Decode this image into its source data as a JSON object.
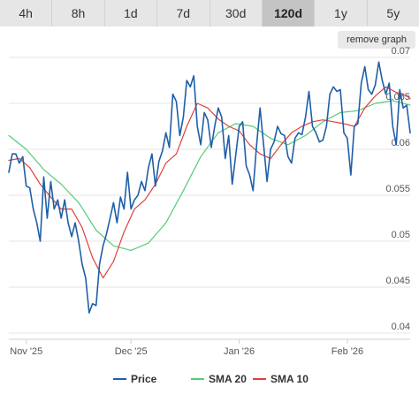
{
  "tabs": [
    {
      "label": "4h",
      "active": false
    },
    {
      "label": "8h",
      "active": false
    },
    {
      "label": "1d",
      "active": false
    },
    {
      "label": "7d",
      "active": false
    },
    {
      "label": "30d",
      "active": false
    },
    {
      "label": "120d",
      "active": true
    },
    {
      "label": "1y",
      "active": false
    },
    {
      "label": "5y",
      "active": false
    }
  ],
  "remove_button": "remove graph",
  "chart_data": {
    "type": "line",
    "x_labels": [
      "Nov '25",
      "Dec '25",
      "Jan '26",
      "Feb '26"
    ],
    "x_label_positions_days": [
      5,
      35,
      66,
      97
    ],
    "ylim": [
      0.04,
      0.07
    ],
    "yticks": [
      "0.04",
      "0.045",
      "0.05",
      "0.055",
      "0.06",
      "0.065",
      "0.07"
    ],
    "grid": "horizontal",
    "legend_position": "bottom",
    "series": [
      {
        "name": "Price",
        "color": "#1f5fa8",
        "x": [
          0,
          1,
          2,
          3,
          4,
          5,
          6,
          7,
          8,
          9,
          10,
          11,
          12,
          13,
          14,
          15,
          16,
          17,
          18,
          19,
          20,
          21,
          22,
          23,
          24,
          25,
          26,
          27,
          28,
          29,
          30,
          31,
          32,
          33,
          34,
          35,
          36,
          37,
          38,
          39,
          40,
          41,
          42,
          43,
          44,
          45,
          46,
          47,
          48,
          49,
          50,
          51,
          52,
          53,
          54,
          55,
          56,
          57,
          58,
          59,
          60,
          61,
          62,
          63,
          64,
          65,
          66,
          67,
          68,
          69,
          70,
          71,
          72,
          73,
          74,
          75,
          76,
          77,
          78,
          79,
          80,
          81,
          82,
          83,
          84,
          85,
          86,
          87,
          88,
          89,
          90,
          91,
          92,
          93,
          94,
          95,
          96,
          97,
          98,
          99,
          100,
          101,
          102,
          103,
          104,
          105,
          106,
          107,
          108,
          109,
          110,
          111,
          112,
          113,
          114,
          115
        ],
        "y": [
          0.0575,
          0.0595,
          0.0595,
          0.0585,
          0.0592,
          0.056,
          0.0558,
          0.0535,
          0.052,
          0.05,
          0.057,
          0.0525,
          0.0565,
          0.0535,
          0.0545,
          0.0525,
          0.0545,
          0.052,
          0.0505,
          0.052,
          0.05,
          0.0475,
          0.046,
          0.0422,
          0.0432,
          0.043,
          0.0475,
          0.0495,
          0.0508,
          0.0525,
          0.0542,
          0.052,
          0.0548,
          0.0535,
          0.0575,
          0.0535,
          0.0545,
          0.055,
          0.0565,
          0.0555,
          0.058,
          0.0595,
          0.056,
          0.0587,
          0.0598,
          0.0618,
          0.0602,
          0.066,
          0.0652,
          0.0615,
          0.0635,
          0.0675,
          0.0668,
          0.068,
          0.0625,
          0.0605,
          0.064,
          0.0632,
          0.0602,
          0.0625,
          0.0645,
          0.0635,
          0.059,
          0.0615,
          0.0562,
          0.0593,
          0.0625,
          0.063,
          0.0582,
          0.0572,
          0.0555,
          0.0605,
          0.0645,
          0.0605,
          0.0565,
          0.06,
          0.0608,
          0.0625,
          0.0617,
          0.0615,
          0.0592,
          0.0585,
          0.0612,
          0.0618,
          0.0616,
          0.0635,
          0.0663,
          0.0625,
          0.0618,
          0.0608,
          0.061,
          0.0625,
          0.066,
          0.0668,
          0.0663,
          0.0665,
          0.0618,
          0.0612,
          0.0572,
          0.0625,
          0.0628,
          0.0672,
          0.069,
          0.0665,
          0.066,
          0.067,
          0.0695,
          0.0675,
          0.066,
          0.0672,
          0.0625,
          0.0605,
          0.0665,
          0.0645,
          0.0648,
          0.0618
        ],
        "line_width": 1.6
      },
      {
        "name": "SMA 20",
        "color": "#55cc77",
        "x": [
          0,
          5,
          10,
          15,
          20,
          25,
          30,
          35,
          40,
          45,
          50,
          55,
          60,
          65,
          70,
          75,
          80,
          85,
          90,
          95,
          100,
          105,
          110,
          115
        ],
        "y": [
          0.0615,
          0.06,
          0.0578,
          0.0562,
          0.0542,
          0.0512,
          0.0495,
          0.049,
          0.0498,
          0.052,
          0.0555,
          0.0592,
          0.0618,
          0.0628,
          0.0625,
          0.0612,
          0.0605,
          0.0615,
          0.063,
          0.064,
          0.0642,
          0.065,
          0.0653,
          0.0648
        ],
        "line_width": 1.2
      },
      {
        "name": "SMA 10",
        "color": "#e0403a",
        "x": [
          0,
          3,
          6,
          9,
          12,
          15,
          18,
          21,
          24,
          27,
          30,
          33,
          36,
          39,
          42,
          45,
          48,
          51,
          54,
          57,
          60,
          63,
          66,
          69,
          72,
          75,
          78,
          81,
          84,
          87,
          90,
          93,
          96,
          99,
          102,
          105,
          108,
          111,
          114,
          115
        ],
        "y": [
          0.0588,
          0.059,
          0.058,
          0.0562,
          0.0548,
          0.0535,
          0.0535,
          0.0515,
          0.0482,
          0.046,
          0.0478,
          0.051,
          0.0535,
          0.0545,
          0.0562,
          0.0585,
          0.0595,
          0.0625,
          0.065,
          0.0645,
          0.0633,
          0.0625,
          0.062,
          0.0605,
          0.0595,
          0.059,
          0.0605,
          0.0618,
          0.0625,
          0.063,
          0.0632,
          0.063,
          0.0628,
          0.0625,
          0.0645,
          0.0658,
          0.0668,
          0.0662,
          0.0658,
          0.0655
        ],
        "line_width": 1.2
      }
    ]
  }
}
